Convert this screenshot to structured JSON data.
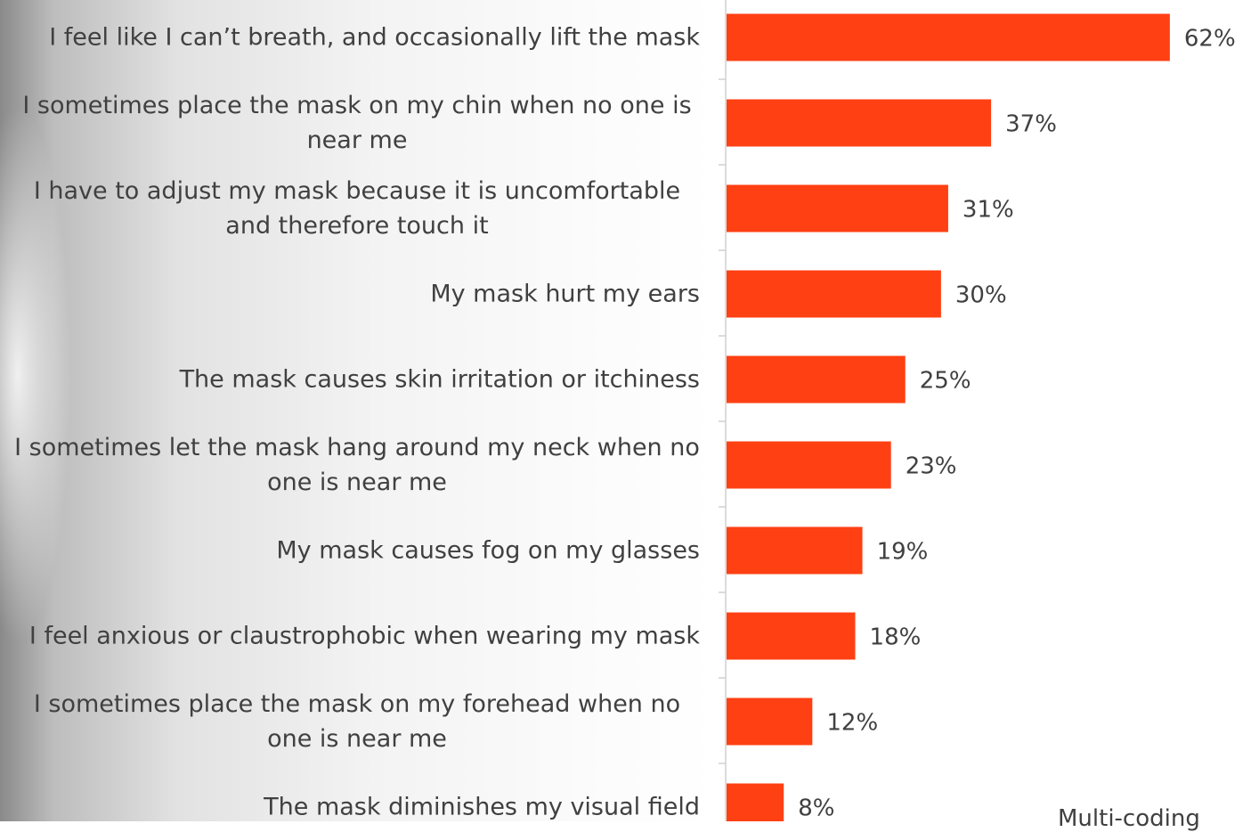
{
  "chart_data": {
    "type": "bar",
    "orientation": "horizontal",
    "categories": [
      "I feel like I can’t breath, and occasionally lift the mask",
      "I sometimes place the mask on my chin when no one is near me",
      "I have to adjust my mask because it is uncomfortable and therefore touch it",
      "My mask hurt my ears",
      "The mask causes skin irritation or itchiness",
      "I sometimes let the mask hang around my neck when no one is near me",
      "My mask causes fog on my glasses",
      "I feel anxious or claustrophobic when wearing my mask",
      "I sometimes place the mask on my forehead when no one is near me",
      "The mask diminishes my visual field"
    ],
    "values": [
      62,
      37,
      31,
      30,
      25,
      23,
      19,
      18,
      12,
      8
    ],
    "value_labels": [
      "62%",
      "37%",
      "31%",
      "30%",
      "25%",
      "23%",
      "19%",
      "18%",
      "12%",
      "8%"
    ],
    "color": "#ff4013",
    "footnote": "Multi-coding"
  }
}
